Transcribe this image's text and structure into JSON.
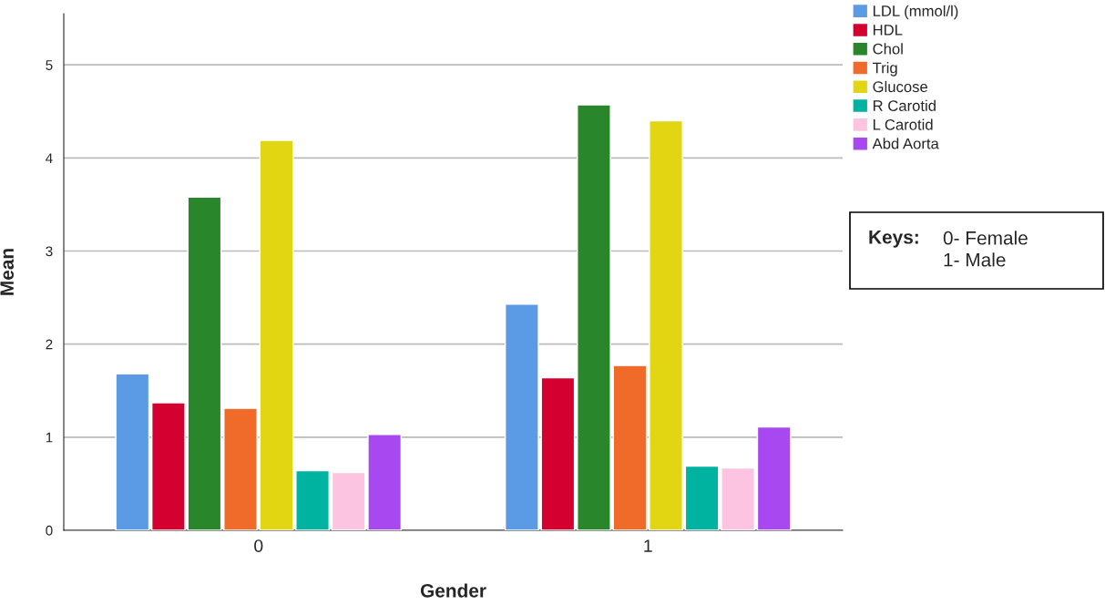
{
  "chart_data": {
    "type": "bar",
    "xlabel": "Gender",
    "ylabel": "Mean",
    "categories": [
      "0",
      "1"
    ],
    "series": [
      {
        "name": "LDL (mmol/l)",
        "color": "#5b9be6",
        "values": [
          1.68,
          2.43
        ]
      },
      {
        "name": "HDL",
        "color": "#d4002f",
        "values": [
          1.37,
          1.64
        ]
      },
      {
        "name": "Chol",
        "color": "#2a862a",
        "values": [
          3.58,
          4.57
        ]
      },
      {
        "name": "Trig",
        "color": "#f06a2a",
        "values": [
          1.31,
          1.77
        ]
      },
      {
        "name": "Glucose",
        "color": "#e2d511",
        "values": [
          4.19,
          4.4
        ]
      },
      {
        "name": "R Carotid",
        "color": "#00b3a0",
        "values": [
          0.64,
          0.69
        ]
      },
      {
        "name": "L Carotid",
        "color": "#fcc4e0",
        "values": [
          0.62,
          0.67
        ]
      },
      {
        "name": "Abd Aorta",
        "color": "#a848f0",
        "values": [
          1.03,
          1.11
        ]
      }
    ],
    "ylim": [
      0,
      5.55
    ],
    "yticks": [
      0,
      1,
      2,
      3,
      4,
      5
    ],
    "grid": "y",
    "legend": "top right",
    "annotations": [
      "Keys:",
      "0- Female\n1- Male"
    ]
  }
}
